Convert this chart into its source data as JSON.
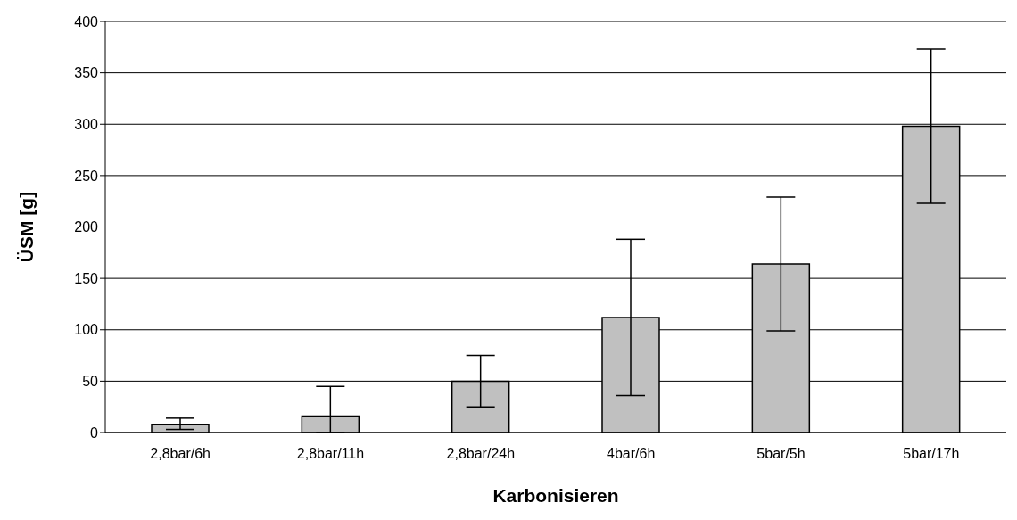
{
  "chart_data": {
    "type": "bar",
    "xlabel": "Karbonisieren",
    "ylabel": "ÜSM [g]",
    "categories": [
      "2,8bar/6h",
      "2,8bar/11h",
      "2,8bar/24h",
      "4bar/6h",
      "5bar/5h",
      "5bar/17h"
    ],
    "series": [
      {
        "color": "#c0c0c0",
        "values": [
          8,
          16,
          50,
          112,
          164,
          298
        ],
        "errors": [
          [
            3,
            14
          ],
          [
            0,
            45
          ],
          25,
          76,
          65,
          75
        ]
      }
    ],
    "ylim": [
      0,
      400
    ],
    "yticks": [
      0,
      50,
      100,
      150,
      200,
      250,
      300,
      350,
      400
    ],
    "grid": "y",
    "legend": false
  }
}
